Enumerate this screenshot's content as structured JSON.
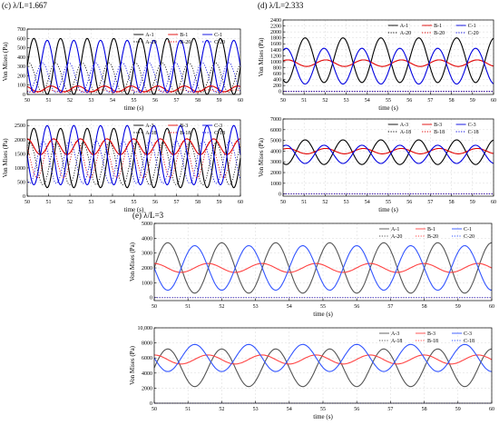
{
  "panel_titles": [
    "(c) λ/L=1.667",
    "(d) λ/L=2.333",
    "(e) λ/L=3"
  ],
  "chart_data": [
    {
      "type": "line",
      "group": "(c) λ/L=1.667",
      "xlabel": "time (s)",
      "ylabel": "Von Mises (Pa)",
      "xlim": [
        50,
        60
      ],
      "ylim": [
        0,
        700
      ],
      "xticks": [
        "50",
        "51",
        "52",
        "53",
        "54",
        "55",
        "56",
        "57",
        "58",
        "59",
        "60"
      ],
      "yticks": [
        "0",
        "100",
        "200",
        "300",
        "400",
        "500",
        "600",
        "700"
      ],
      "grid": true,
      "period": 1.25,
      "series": [
        {
          "name": "A-1",
          "color": "#000000",
          "dash": "solid",
          "mean": 300,
          "amp": 300,
          "phase": 0
        },
        {
          "name": "B-1",
          "color": "#e00000",
          "dash": "solid",
          "mean": 60,
          "amp": 30,
          "phase": 2.2
        },
        {
          "name": "C-1",
          "color": "#0000e0",
          "dash": "solid",
          "mean": 300,
          "amp": 280,
          "phase": 3.14
        },
        {
          "name": "A-20",
          "color": "#000000",
          "dash": "dot",
          "mean": 180,
          "amp": 160,
          "phase": 1.2
        },
        {
          "name": "B-20",
          "color": "#e00000",
          "dash": "dot",
          "mean": 35,
          "amp": 15,
          "phase": 2.8
        },
        {
          "name": "C-20",
          "color": "#0000e0",
          "dash": "dot",
          "mean": 180,
          "amp": 160,
          "phase": 4.3
        }
      ]
    },
    {
      "type": "line",
      "group": "(c) λ/L=1.667",
      "xlabel": "time (s)",
      "ylabel": "Von Mises (Pa)",
      "xlim": [
        50,
        60
      ],
      "ylim": [
        0,
        2700
      ],
      "xticks": [
        "50",
        "51",
        "52",
        "53",
        "54",
        "55",
        "56",
        "57",
        "58",
        "59",
        "60"
      ],
      "yticks": [
        "0",
        "500",
        "1000",
        "1500",
        "2000",
        "2500"
      ],
      "grid": true,
      "period": 1.25,
      "series": [
        {
          "name": "A-3",
          "color": "#000000",
          "dash": "solid",
          "mean": 1350,
          "amp": 1050,
          "phase": 0
        },
        {
          "name": "B-3",
          "color": "#e00000",
          "dash": "solid",
          "mean": 1750,
          "amp": 280,
          "phase": 1.6
        },
        {
          "name": "C-3",
          "color": "#0000e0",
          "dash": "solid",
          "mean": 1450,
          "amp": 1050,
          "phase": 3.14
        },
        {
          "name": "A-18",
          "color": "#000000",
          "dash": "dot",
          "mean": 1150,
          "amp": 750,
          "phase": 1.0
        },
        {
          "name": "B-18",
          "color": "#e00000",
          "dash": "dot",
          "mean": 1300,
          "amp": 650,
          "phase": 2.4
        },
        {
          "name": "C-18",
          "color": "#0000e0",
          "dash": "dot",
          "mean": 1200,
          "amp": 750,
          "phase": 4.1
        }
      ]
    },
    {
      "type": "line",
      "group": "(d) λ/L=2.333",
      "xlabel": "time (s)",
      "ylabel": "Von Mises (Pa)",
      "xlim": [
        50,
        60
      ],
      "ylim": [
        -100,
        2400
      ],
      "xticks": [
        "50",
        "51",
        "52",
        "53",
        "54",
        "55",
        "56",
        "57",
        "58",
        "59",
        "60"
      ],
      "yticks": [
        "0",
        "200",
        "400",
        "600",
        "800",
        "1000",
        "1200",
        "1400",
        "1600",
        "1800",
        "2000",
        "2200",
        "2400"
      ],
      "grid": true,
      "period": 1.8,
      "series": [
        {
          "name": "A-1",
          "color": "#000000",
          "dash": "solid",
          "mean": 1050,
          "amp": 750,
          "phase": 4.2
        },
        {
          "name": "B-1",
          "color": "#e00000",
          "dash": "solid",
          "mean": 950,
          "amp": 110,
          "phase": 0.8
        },
        {
          "name": "C-1",
          "color": "#0000e0",
          "dash": "solid",
          "mean": 850,
          "amp": 600,
          "phase": 1.06
        },
        {
          "name": "A-20",
          "color": "#000000",
          "dash": "dot",
          "mean": 0,
          "amp": 0,
          "phase": 0
        },
        {
          "name": "B-20",
          "color": "#e00000",
          "dash": "dot",
          "mean": 0,
          "amp": 0,
          "phase": 0
        },
        {
          "name": "C-20",
          "color": "#0000e0",
          "dash": "dot",
          "mean": 0,
          "amp": 0,
          "phase": 0
        }
      ]
    },
    {
      "type": "line",
      "group": "(d) λ/L=2.333",
      "xlabel": "time (s)",
      "ylabel": "Von Mises (Pa)",
      "xlim": [
        50,
        60
      ],
      "ylim": [
        -200,
        7000
      ],
      "xticks": [
        "50",
        "51",
        "52",
        "53",
        "54",
        "55",
        "56",
        "57",
        "58",
        "59",
        "60"
      ],
      "yticks": [
        "0",
        "1000",
        "2000",
        "3000",
        "4000",
        "5000",
        "6000",
        "7000"
      ],
      "grid": true,
      "period": 1.8,
      "series": [
        {
          "name": "A-3",
          "color": "#000000",
          "dash": "solid",
          "mean": 3900,
          "amp": 1150,
          "phase": 4.2
        },
        {
          "name": "B-3",
          "color": "#e00000",
          "dash": "solid",
          "mean": 4000,
          "amp": 250,
          "phase": 0.8
        },
        {
          "name": "C-3",
          "color": "#0000e0",
          "dash": "solid",
          "mean": 3700,
          "amp": 850,
          "phase": 1.06
        },
        {
          "name": "A-18",
          "color": "#000000",
          "dash": "dot",
          "mean": 0,
          "amp": 0,
          "phase": 0
        },
        {
          "name": "B-18",
          "color": "#e00000",
          "dash": "dot",
          "mean": 0,
          "amp": 0,
          "phase": 0
        },
        {
          "name": "C-18",
          "color": "#0000e0",
          "dash": "dot",
          "mean": 0,
          "amp": 0,
          "phase": 0
        }
      ]
    },
    {
      "type": "line",
      "group": "(e) λ/L=3",
      "xlabel": "time (s)",
      "ylabel": "Von Mises (Pa)",
      "xlim": [
        50,
        60
      ],
      "ylim": [
        -200,
        5000
      ],
      "xticks": [
        "50",
        "51",
        "52",
        "53",
        "54",
        "55",
        "56",
        "57",
        "58",
        "59",
        "60"
      ],
      "yticks": [
        "0",
        "1000",
        "2000",
        "3000",
        "4000",
        "5000"
      ],
      "grid": true,
      "period": 1.6,
      "series": [
        {
          "name": "A-1",
          "color": "#555555",
          "dash": "solid",
          "mean": 2000,
          "amp": 1700,
          "phase": 0
        },
        {
          "name": "B-1",
          "color": "#ff4444",
          "dash": "solid",
          "mean": 2000,
          "amp": 300,
          "phase": 1.6
        },
        {
          "name": "C-1",
          "color": "#3355ff",
          "dash": "solid",
          "mean": 2000,
          "amp": 1500,
          "phase": 3.14
        },
        {
          "name": "A-20",
          "color": "#555555",
          "dash": "dot",
          "mean": 0,
          "amp": 0,
          "phase": 0
        },
        {
          "name": "B-20",
          "color": "#ff4444",
          "dash": "dot",
          "mean": 0,
          "amp": 0,
          "phase": 0
        },
        {
          "name": "C-20",
          "color": "#3355ff",
          "dash": "dot",
          "mean": 0,
          "amp": 0,
          "phase": 0
        }
      ]
    },
    {
      "type": "line",
      "group": "(e) λ/L=3",
      "xlabel": "time (s)",
      "ylabel": "Von Mises (Pa)",
      "xlim": [
        50,
        60
      ],
      "ylim": [
        0,
        10000
      ],
      "xticks": [
        "50",
        "51",
        "52",
        "53",
        "54",
        "55",
        "56",
        "57",
        "58",
        "59",
        "60"
      ],
      "yticks": [
        "0",
        "2000",
        "4000",
        "6000",
        "8000",
        "10,000"
      ],
      "grid": true,
      "period": 1.6,
      "series": [
        {
          "name": "A-3",
          "color": "#555555",
          "dash": "solid",
          "mean": 4700,
          "amp": 2500,
          "phase": 0
        },
        {
          "name": "B-3",
          "color": "#ff4444",
          "dash": "solid",
          "mean": 5800,
          "amp": 600,
          "phase": 1.6
        },
        {
          "name": "C-3",
          "color": "#3355ff",
          "dash": "solid",
          "mean": 6000,
          "amp": 1800,
          "phase": 3.14
        },
        {
          "name": "A-18",
          "color": "#555555",
          "dash": "dot",
          "mean": 0,
          "amp": 0,
          "phase": 0
        },
        {
          "name": "B-18",
          "color": "#ff4444",
          "dash": "dot",
          "mean": 0,
          "amp": 0,
          "phase": 0
        },
        {
          "name": "C-18",
          "color": "#3355ff",
          "dash": "dot",
          "mean": 0,
          "amp": 0,
          "phase": 0
        }
      ]
    }
  ]
}
